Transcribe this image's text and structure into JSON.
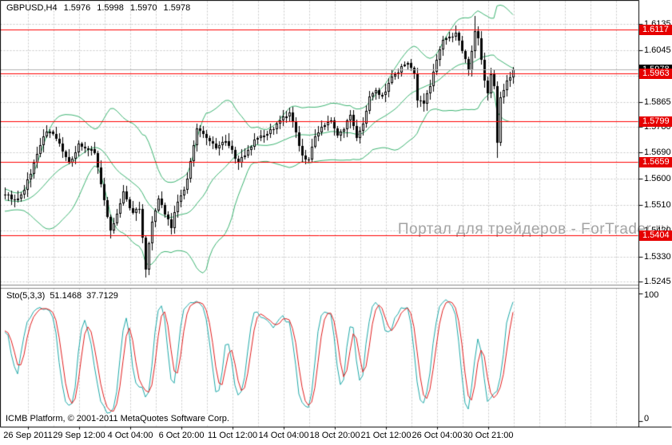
{
  "header": {
    "symbol_timeframe": "GBPUSD,H4",
    "open": "1.5976",
    "high": "1.5998",
    "low": "1.5970",
    "close": "1.5978"
  },
  "indicator_panel": {
    "label": "Sto(5,3,3)",
    "main_value": "51.1468",
    "signal_value": "37.7129",
    "scale_max": "100",
    "scale_min": "0"
  },
  "footer": {
    "copyright": "ICMB Platform, © 2001-2011 MetaQuotes Software Corp."
  },
  "watermark": {
    "text": "Портал для трейдеров - ForTrader.ru"
  },
  "colors": {
    "background": "#ffffff",
    "grid": "#c9c9c9",
    "candle": "#000000",
    "bollinger": "#3cb371",
    "level_line": "#ff0000",
    "level_badge_bg": "#e60000",
    "bid_line": "#b0b0b0",
    "bid_badge_bg": "#000000",
    "badge_text": "#ffffff",
    "stoch_main": "#1fa8a8",
    "stoch_signal": "#e01f1f"
  },
  "chart_data": {
    "type": "candlestick",
    "symbol": "GBPUSD",
    "timeframe": "H4",
    "title": "GBPUSD,H4 1.5976 1.5998 1.5970 1.5978",
    "current_bid": "1.5978",
    "price_axis_ticks": [
      "1.6135",
      "1.6045",
      "1.5955",
      "1.5865",
      "1.5780",
      "1.5690",
      "1.5600",
      "1.5510",
      "1.5420",
      "1.5330",
      "1.5245"
    ],
    "time_axis_labels": [
      "26 Sep 2011",
      "29 Sep 12:00",
      "4 Oct 04:00",
      "6 Oct 20:00",
      "11 Oct 12:00",
      "14 Oct 04:00",
      "18 Oct 20:00",
      "21 Oct 12:00",
      "26 Oct 04:00",
      "30 Oct 21:00"
    ],
    "horizontal_level_lines": [
      "1.6117",
      "1.5963",
      "1.5799",
      "1.5659",
      "1.5404"
    ],
    "overlays": [
      {
        "name": "Bollinger Bands",
        "period": 20,
        "deviation": 2
      }
    ],
    "indicator": {
      "name": "Stochastic",
      "params": [
        5,
        3,
        3
      ],
      "main": 51.1468,
      "signal": 37.7129,
      "range": [
        0,
        100
      ]
    },
    "candles": {
      "count": 160,
      "close_anchors": [
        [
          -20,
          1.557
        ],
        [
          -15,
          1.553
        ],
        [
          -10,
          1.5495
        ],
        [
          -5,
          1.552
        ],
        [
          0,
          1.5545
        ],
        [
          3,
          1.5525
        ],
        [
          6,
          1.556
        ],
        [
          9,
          1.5655
        ],
        [
          12,
          1.5745
        ],
        [
          14,
          1.5762
        ],
        [
          17,
          1.572
        ],
        [
          20,
          1.5655
        ],
        [
          23,
          1.572
        ],
        [
          26,
          1.57
        ],
        [
          28,
          1.5688
        ],
        [
          30,
          1.558
        ],
        [
          33,
          1.542
        ],
        [
          34,
          1.5445
        ],
        [
          37,
          1.5555
        ],
        [
          40,
          1.548
        ],
        [
          42,
          1.5495
        ],
        [
          44,
          1.5285
        ],
        [
          46,
          1.545
        ],
        [
          48,
          1.553
        ],
        [
          50,
          1.5475
        ],
        [
          52,
          1.543
        ],
        [
          54,
          1.552
        ],
        [
          56,
          1.556
        ],
        [
          58,
          1.566
        ],
        [
          60,
          1.5775
        ],
        [
          63,
          1.574
        ],
        [
          66,
          1.5705
        ],
        [
          69,
          1.573
        ],
        [
          71,
          1.57
        ],
        [
          73,
          1.5655
        ],
        [
          75,
          1.568
        ],
        [
          78,
          1.5735
        ],
        [
          81,
          1.575
        ],
        [
          84,
          1.577
        ],
        [
          87,
          1.5815
        ],
        [
          89,
          1.583
        ],
        [
          91,
          1.576
        ],
        [
          93,
          1.568
        ],
        [
          95,
          1.5665
        ],
        [
          97,
          1.5745
        ],
        [
          100,
          1.5785
        ],
        [
          102,
          1.58
        ],
        [
          104,
          1.575
        ],
        [
          106,
          1.577
        ],
        [
          108,
          1.582
        ],
        [
          110,
          1.574
        ],
        [
          112,
          1.579
        ],
        [
          114,
          1.5885
        ],
        [
          116,
          1.5905
        ],
        [
          118,
          1.589
        ],
        [
          120,
          1.593
        ],
        [
          122,
          1.596
        ],
        [
          124,
          1.599
        ],
        [
          126,
          1.6
        ],
        [
          128,
          1.596
        ],
        [
          129,
          1.587
        ],
        [
          131,
          1.5858
        ],
        [
          133,
          1.592
        ],
        [
          135,
          1.601
        ],
        [
          137,
          1.608
        ],
        [
          139,
          1.609
        ],
        [
          141,
          1.6105
        ],
        [
          143,
          1.604
        ],
        [
          145,
          1.5975
        ],
        [
          147,
          1.611
        ],
        [
          148,
          1.6085
        ],
        [
          150,
          1.594
        ],
        [
          151,
          1.5895
        ],
        [
          152,
          1.596
        ],
        [
          153,
          1.592
        ],
        [
          154,
          1.5725
        ],
        [
          155,
          1.588
        ],
        [
          156,
          1.5905
        ],
        [
          157,
          1.594
        ],
        [
          158,
          1.595
        ],
        [
          159,
          1.5978
        ]
      ],
      "extremes": [
        {
          "index": 44,
          "low": 1.5257
        },
        {
          "index": 147,
          "high": 1.6163
        },
        {
          "index": 154,
          "low": 1.5672
        }
      ]
    }
  }
}
